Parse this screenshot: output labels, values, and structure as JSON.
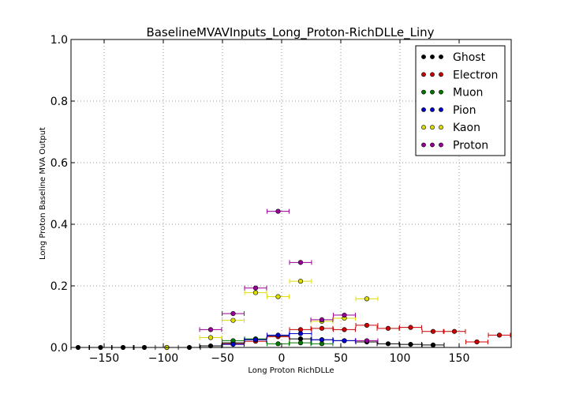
{
  "chart_data": {
    "type": "scatter",
    "title": "BaselineMVAVInputs_Long_Proton-RichDLLe_Liny",
    "xlabel": "Long Proton RichDLLe",
    "ylabel": "Long Proton Baseline MVA Output",
    "xlim": [
      -178,
      194
    ],
    "ylim": [
      0,
      1.0
    ],
    "xticks": [
      -150,
      -100,
      -50,
      0,
      50,
      100,
      150
    ],
    "xtick_labels": [
      "−150",
      "−100",
      "−50",
      "0",
      "50",
      "100",
      "150"
    ],
    "yticks": [
      0.0,
      0.2,
      0.4,
      0.6,
      0.8,
      1.0
    ],
    "ytick_labels": [
      "0.0",
      "0.2",
      "0.4",
      "0.6",
      "0.8",
      "1.0"
    ],
    "grid": true,
    "legend_position": "top-right",
    "bin_half_width": 9.3,
    "series": [
      {
        "name": "Ghost",
        "color": "#000000",
        "points": [
          [
            -172,
            0.0
          ],
          [
            -153,
            0.0
          ],
          [
            -134,
            0.0
          ],
          [
            -116,
            0.0
          ],
          [
            -97,
            0.0
          ],
          [
            -78,
            0.0
          ],
          [
            -60,
            0.005
          ],
          [
            -41,
            0.015
          ],
          [
            -22,
            0.025
          ],
          [
            -3,
            0.038
          ],
          [
            16,
            0.028
          ],
          [
            34,
            0.025
          ],
          [
            53,
            0.022
          ],
          [
            72,
            0.018
          ],
          [
            90,
            0.012
          ],
          [
            109,
            0.01
          ],
          [
            128,
            0.008
          ]
        ]
      },
      {
        "name": "Electron",
        "color": "#cc0000",
        "points": [
          [
            -41,
            0.012
          ],
          [
            -22,
            0.02
          ],
          [
            -3,
            0.035
          ],
          [
            16,
            0.058
          ],
          [
            34,
            0.062
          ],
          [
            53,
            0.058
          ],
          [
            72,
            0.072
          ],
          [
            90,
            0.062
          ],
          [
            109,
            0.065
          ],
          [
            128,
            0.052
          ],
          [
            146,
            0.052
          ],
          [
            165,
            0.018
          ],
          [
            184,
            0.04
          ]
        ]
      },
      {
        "name": "Muon",
        "color": "#007700",
        "points": [
          [
            -41,
            0.022
          ],
          [
            -22,
            0.028
          ],
          [
            -3,
            0.012
          ],
          [
            16,
            0.015
          ],
          [
            34,
            0.012
          ]
        ]
      },
      {
        "name": "Pion",
        "color": "#0000cc",
        "points": [
          [
            -41,
            0.01
          ],
          [
            -22,
            0.025
          ],
          [
            -3,
            0.04
          ],
          [
            16,
            0.045
          ],
          [
            34,
            0.025
          ],
          [
            53,
            0.022
          ]
        ]
      },
      {
        "name": "Kaon",
        "color": "#dddd00",
        "points": [
          [
            -97,
            0.0
          ],
          [
            -60,
            0.032
          ],
          [
            -41,
            0.088
          ],
          [
            -22,
            0.178
          ],
          [
            -3,
            0.165
          ],
          [
            16,
            0.215
          ],
          [
            34,
            0.085
          ],
          [
            53,
            0.095
          ],
          [
            72,
            0.158
          ]
        ]
      },
      {
        "name": "Proton",
        "color": "#990099",
        "points": [
          [
            -60,
            0.058
          ],
          [
            -41,
            0.11
          ],
          [
            -22,
            0.193
          ],
          [
            -3,
            0.442
          ],
          [
            16,
            0.276
          ],
          [
            34,
            0.09
          ],
          [
            53,
            0.105
          ],
          [
            72,
            0.022
          ]
        ]
      }
    ]
  }
}
